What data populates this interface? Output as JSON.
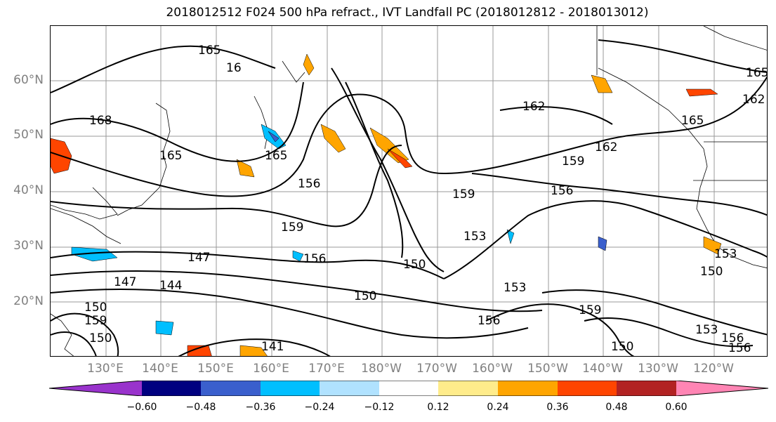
{
  "title": "2018012512 F024 500 hPa refract., IVT Landfall PC (2018012812 - 2018013012)",
  "lat_labels": [
    "60°N",
    "50°N",
    "40°N",
    "30°N",
    "20°N"
  ],
  "lon_labels": [
    "130°E",
    "140°E",
    "150°E",
    "160°E",
    "170°E",
    "180°W",
    "170°W",
    "160°W",
    "150°W",
    "140°W",
    "130°W",
    "120°W"
  ],
  "colorbar": {
    "colors": [
      "#9933cc",
      "#000080",
      "#3a5fcd",
      "#00bfff",
      "#b0e2ff",
      "#ffffff",
      "#ffec8b",
      "#ffa500",
      "#ff4500",
      "#b22222",
      "#ff85b4"
    ],
    "tick_labels": [
      "−0.60",
      "−0.48",
      "−0.36",
      "−0.24",
      "−0.12",
      "0.12",
      "0.24",
      "0.36",
      "0.48",
      "0.60"
    ]
  },
  "contour_labels": [
    "165",
    "16",
    "168",
    "165",
    "165",
    "156",
    "159",
    "162",
    "159",
    "156",
    "159",
    "153",
    "150",
    "150",
    "156",
    "147",
    "147",
    "144",
    "150",
    "159",
    "150",
    "153",
    "156",
    "159",
    "150",
    "153",
    "156",
    "156",
    "162",
    "165",
    "165",
    "162",
    "153",
    "150",
    "141"
  ]
}
